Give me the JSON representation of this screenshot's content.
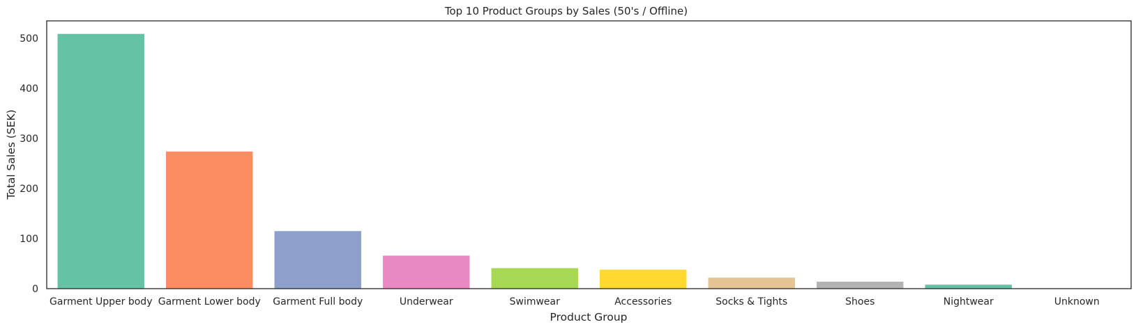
{
  "chart_data": {
    "type": "bar",
    "title": "Top 10 Product Groups by Sales (50's / Offline)",
    "xlabel": "Product Group",
    "ylabel": "Total Sales (SEK)",
    "categories": [
      "Garment Upper body",
      "Garment Lower body",
      "Garment Full body",
      "Underwear",
      "Swimwear",
      "Accessories",
      "Socks & Tights",
      "Shoes",
      "Nightwear",
      "Unknown"
    ],
    "values": [
      509,
      274,
      115,
      66,
      41,
      38,
      22,
      14,
      8,
      0.5
    ],
    "colors": [
      "#66c2a5",
      "#fc8d62",
      "#8da0cb",
      "#e78ac3",
      "#a6d854",
      "#ffd92f",
      "#e5c494",
      "#b3b3b3",
      "#66c2a5",
      "#fc8d62"
    ],
    "ylim": [
      0,
      535
    ],
    "yticks": [
      0,
      100,
      200,
      300,
      400,
      500
    ],
    "grid": false,
    "legend": "none"
  }
}
